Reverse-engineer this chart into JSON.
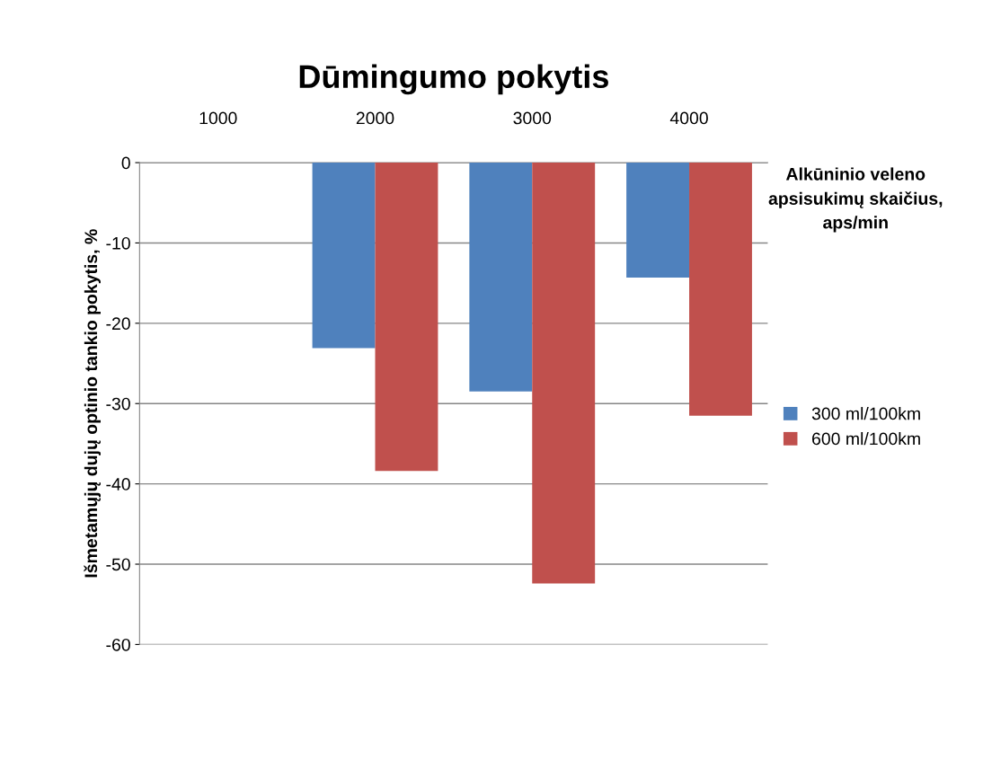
{
  "chart_data": {
    "type": "bar",
    "title": "Dūmingumo pokytis",
    "xlabel": "Alkūninio veleno\napsisukimų skaičius,\naps/min",
    "ylabel": "Išmetamųjų dujų optinio tankio pokytis, %",
    "categories": [
      "1000",
      "2000",
      "3000",
      "4000"
    ],
    "series": [
      {
        "name": "300 ml/100km",
        "color": "#4f81bd",
        "values": [
          0,
          -23.1,
          -28.5,
          -14.3
        ]
      },
      {
        "name": "600 ml/100km",
        "color": "#c0504d",
        "values": [
          0,
          -38.4,
          -52.4,
          -31.5
        ]
      }
    ],
    "ylim": [
      -60,
      0
    ],
    "yticks": [
      -60,
      -50,
      -40,
      -30,
      -20,
      -10,
      0
    ],
    "grid": "y",
    "legend": "right"
  }
}
